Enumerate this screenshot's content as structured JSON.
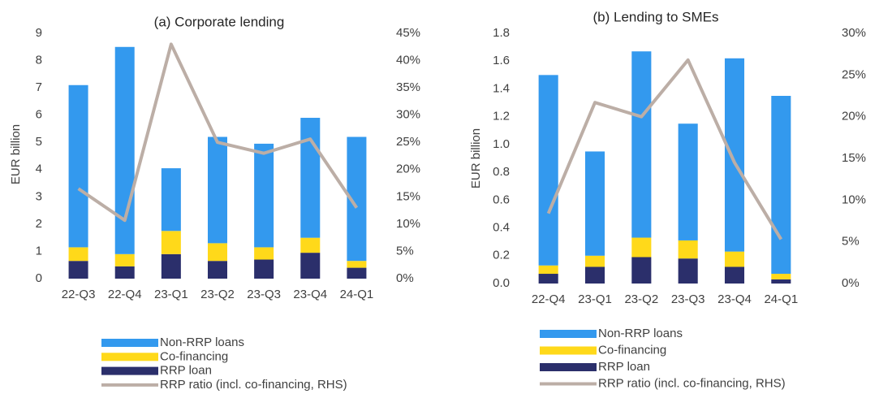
{
  "chart_data": [
    {
      "type": "bar",
      "stacked": true,
      "title": "(a) Corporate lending",
      "y_label": "EUR billion",
      "categories": [
        "22-Q3",
        "22-Q4",
        "23-Q1",
        "23-Q2",
        "23-Q3",
        "23-Q4",
        "24-Q1"
      ],
      "series": [
        {
          "name": "RRP loan",
          "type": "bar",
          "color": "#2b2f6b",
          "values": [
            0.65,
            0.45,
            0.9,
            0.65,
            0.7,
            0.95,
            0.4
          ]
        },
        {
          "name": "Co-financing",
          "type": "bar",
          "color": "#ffd91a",
          "values": [
            0.5,
            0.45,
            0.85,
            0.65,
            0.45,
            0.55,
            0.25
          ]
        },
        {
          "name": "Non-RRP loans",
          "type": "bar",
          "color": "#3399ee",
          "values": [
            5.95,
            7.6,
            2.3,
            3.9,
            3.8,
            4.4,
            4.55
          ]
        },
        {
          "name": "RRP ratio (incl. co-financing, RHS)",
          "type": "line",
          "axis": "y2",
          "color": "#bcaea6",
          "values": [
            16.5,
            10.7,
            43,
            25,
            23,
            25.6,
            13
          ]
        }
      ],
      "ylim": [
        0,
        9
      ],
      "yticks": [
        0,
        1,
        2,
        3,
        4,
        5,
        6,
        7,
        8,
        9
      ],
      "y2lim": [
        0,
        45
      ],
      "y2ticks": [
        {
          "value": 0,
          "label": "0%"
        },
        {
          "value": 5,
          "label": "5%"
        },
        {
          "value": 10,
          "label": "10%"
        },
        {
          "value": 15,
          "label": "15%"
        },
        {
          "value": 20,
          "label": "20%"
        },
        {
          "value": 25,
          "label": "25%"
        },
        {
          "value": 30,
          "label": "30%"
        },
        {
          "value": 35,
          "label": "35%"
        },
        {
          "value": 40,
          "label": "40%"
        },
        {
          "value": 45,
          "label": "45%"
        }
      ]
    },
    {
      "type": "bar",
      "stacked": true,
      "title": "(b) Lending  to SMEs",
      "y_label": "EUR billion",
      "categories": [
        "22-Q4",
        "23-Q1",
        "23-Q2",
        "23-Q3",
        "23-Q4",
        "24-Q1"
      ],
      "series": [
        {
          "name": "RRP loan",
          "type": "bar",
          "color": "#2b2f6b",
          "values": [
            0.07,
            0.12,
            0.19,
            0.18,
            0.12,
            0.03
          ]
        },
        {
          "name": "Co-financing",
          "type": "bar",
          "color": "#ffd91a",
          "values": [
            0.06,
            0.08,
            0.14,
            0.13,
            0.11,
            0.04
          ]
        },
        {
          "name": "Non-RRP loans",
          "type": "bar",
          "color": "#3399ee",
          "values": [
            1.37,
            0.75,
            1.34,
            0.84,
            1.39,
            1.28
          ]
        },
        {
          "name": "RRP ratio (incl. co-financing, RHS)",
          "type": "line",
          "axis": "y2",
          "color": "#bcaea6",
          "values": [
            8.4,
            21.7,
            20,
            26.8,
            14.5,
            5.3
          ]
        }
      ],
      "ylim": [
        0,
        1.8
      ],
      "yticks": [
        {
          "value": 0,
          "label": "0.0"
        },
        {
          "value": 0.2,
          "label": "0.2"
        },
        {
          "value": 0.4,
          "label": "0.4"
        },
        {
          "value": 0.6,
          "label": "0.6"
        },
        {
          "value": 0.8,
          "label": "0.8"
        },
        {
          "value": 1,
          "label": "1.0"
        },
        {
          "value": 1.2,
          "label": "1.2"
        },
        {
          "value": 1.4,
          "label": "1.4"
        },
        {
          "value": 1.6,
          "label": "1.6"
        },
        {
          "value": 1.8,
          "label": "1.8"
        }
      ],
      "y2lim": [
        0,
        30
      ],
      "y2ticks": [
        {
          "value": 0,
          "label": "0%"
        },
        {
          "value": 5,
          "label": "5%"
        },
        {
          "value": 10,
          "label": "10%"
        },
        {
          "value": 15,
          "label": "15%"
        },
        {
          "value": 20,
          "label": "20%"
        },
        {
          "value": 25,
          "label": "25%"
        },
        {
          "value": 30,
          "label": "30%"
        }
      ]
    }
  ]
}
